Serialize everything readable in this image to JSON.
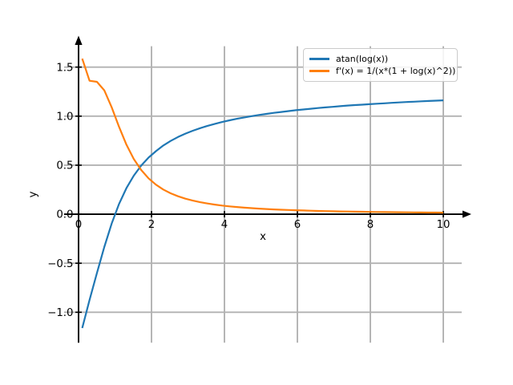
{
  "figure": {
    "background": "#ffffff",
    "grid_color": "#b2b2b2",
    "axis_color": "#000000",
    "tick_label_color": "#000000"
  },
  "chart_data": {
    "type": "line",
    "title": "",
    "xlabel": "x",
    "ylabel": "y",
    "grid": true,
    "legend_position": "upper right",
    "xlim": [
      -0.3956,
      10.5044
    ],
    "ylim": [
      -1.31,
      1.7132
    ],
    "x_ticks": {
      "values": [
        0,
        2,
        4,
        6,
        8,
        10
      ],
      "labels": [
        "0",
        "2",
        "4",
        "6",
        "8",
        "10"
      ]
    },
    "y_ticks": {
      "values": [
        -1.0,
        -0.5,
        0.0,
        0.5,
        1.0,
        1.5
      ],
      "labels": [
        "−1.0",
        "−0.5",
        "0.0",
        "0.5",
        "1.0",
        "1.5"
      ]
    },
    "x": [
      0.1,
      0.302,
      0.504,
      0.706,
      0.908,
      1.11,
      1.312,
      1.514,
      1.716,
      1.918,
      2.12,
      2.322,
      2.524,
      2.727,
      2.929,
      3.131,
      3.333,
      3.535,
      3.737,
      3.939,
      4.141,
      4.343,
      4.545,
      4.747,
      4.949,
      5.151,
      5.353,
      5.555,
      5.757,
      5.959,
      6.161,
      6.363,
      6.565,
      6.767,
      6.969,
      7.171,
      7.373,
      7.576,
      7.778,
      7.98,
      8.182,
      8.384,
      8.586,
      8.788,
      8.99,
      9.192,
      9.394,
      9.596,
      9.798,
      10.0
    ],
    "series": [
      {
        "name": "atan(log(x))",
        "color": "#1f77b4",
        "y": [
          -1.1608,
          -0.8749,
          -0.6006,
          -0.3349,
          -0.096,
          0.1042,
          0.2654,
          0.3933,
          0.4953,
          0.5774,
          0.6426,
          0.7002,
          0.747,
          0.7869,
          0.8213,
          0.8513,
          0.8776,
          0.901,
          0.9218,
          0.9406,
          0.9575,
          0.973,
          0.9871,
          1.0,
          1.012,
          1.023,
          1.0333,
          1.0428,
          1.0518,
          1.0601,
          1.068,
          1.0754,
          1.0824,
          1.0889,
          1.0952,
          1.1011,
          1.1077,
          1.1131,
          1.1172,
          1.1221,
          1.1267,
          1.1312,
          1.1355,
          1.1396,
          1.1435,
          1.1473,
          1.1509,
          1.1544,
          1.1578,
          1.1608
        ]
      },
      {
        "name": "f'(x) = 1/(x*(1 + log(x)^2))",
        "color": "#ff7f0e",
        "y": [
          1.5868,
          1.3606,
          1.3502,
          1.2632,
          1.091,
          0.891,
          0.7096,
          0.5634,
          0.451,
          0.366,
          0.3014,
          0.2518,
          0.2133,
          0.1828,
          0.1585,
          0.1387,
          0.1225,
          0.109,
          0.0978,
          0.0882,
          0.08,
          0.073,
          0.0668,
          0.0615,
          0.0568,
          0.0527,
          0.049,
          0.0457,
          0.0427,
          0.0401,
          0.0377,
          0.0355,
          0.0335,
          0.0317,
          0.0301,
          0.0286,
          0.0272,
          0.0259,
          0.0247,
          0.0236,
          0.0226,
          0.0216,
          0.0207,
          0.0199,
          0.0191,
          0.0184,
          0.0177,
          0.0171,
          0.0164,
          0.0159
        ]
      }
    ]
  },
  "legend": {
    "entries": [
      {
        "label": "atan(log(x))",
        "color": "#1f77b4"
      },
      {
        "label": "f'(x) = 1/(x*(1 + log(x)^2))",
        "color": "#ff7f0e"
      }
    ]
  }
}
